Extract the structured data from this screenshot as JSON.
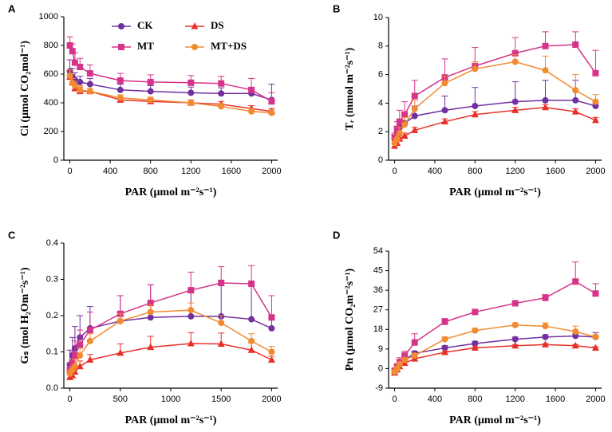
{
  "chart_data": [
    {
      "type": "line",
      "label": "A",
      "xlabel": "PAR (μmol m⁻²s⁻¹)",
      "ylabel": "Ci (μmol CO₂mol⁻¹)",
      "legend": true,
      "x": [
        0,
        25,
        50,
        100,
        200,
        500,
        800,
        1200,
        1500,
        1800,
        2000
      ],
      "xlim": [
        -60,
        2060
      ],
      "xticks": [
        0,
        400,
        800,
        1200,
        1600,
        2000
      ],
      "ylim": [
        0,
        1000
      ],
      "yticks": [
        0,
        200,
        400,
        600,
        800,
        1000
      ],
      "series": [
        {
          "name": "CK",
          "color": "#7030a0",
          "marker": "circle",
          "values": [
            620,
            580,
            560,
            545,
            530,
            490,
            480,
            470,
            465,
            465,
            420
          ],
          "errors": [
            80,
            60,
            50,
            40,
            40,
            40,
            40,
            40,
            40,
            40,
            110
          ]
        },
        {
          "name": "MT",
          "color": "#d6338a",
          "marker": "square",
          "values": [
            800,
            760,
            680,
            650,
            605,
            555,
            545,
            540,
            535,
            490,
            410
          ],
          "errors": [
            60,
            50,
            70,
            60,
            60,
            50,
            50,
            50,
            50,
            80,
            60
          ]
        },
        {
          "name": "DS",
          "color": "#e8302a",
          "marker": "triangle",
          "values": [
            580,
            540,
            500,
            480,
            480,
            420,
            410,
            400,
            390,
            360,
            340
          ],
          "errors": [
            40,
            30,
            30,
            30,
            20,
            20,
            20,
            20,
            20,
            20,
            20
          ]
        },
        {
          "name": "MT+DS",
          "color": "#f28a30",
          "marker": "circle",
          "values": [
            590,
            540,
            520,
            490,
            480,
            435,
            420,
            400,
            375,
            340,
            330
          ],
          "errors": [
            40,
            30,
            30,
            30,
            20,
            20,
            20,
            20,
            20,
            20,
            20
          ]
        }
      ]
    },
    {
      "type": "line",
      "label": "B",
      "xlabel": "PAR (μmol m⁻²s⁻¹)",
      "ylabel": "Tᵣ (mmol m⁻²s⁻¹)",
      "legend": false,
      "x": [
        0,
        25,
        50,
        100,
        200,
        500,
        800,
        1200,
        1500,
        1800,
        2000
      ],
      "xlim": [
        -60,
        2060
      ],
      "xticks": [
        0,
        400,
        800,
        1200,
        1600,
        2000
      ],
      "ylim": [
        0,
        10
      ],
      "yticks": [
        0,
        2,
        4,
        6,
        8,
        10
      ],
      "series": [
        {
          "color": "#7030a0",
          "marker": "circle",
          "values": [
            1.5,
            1.9,
            2.3,
            2.6,
            3.1,
            3.5,
            3.8,
            4.1,
            4.2,
            4.2,
            3.8
          ],
          "errors": [
            0.3,
            0.3,
            0.4,
            0.5,
            0.7,
            1.0,
            1.3,
            1.4,
            1.4,
            1.4,
            0.2
          ]
        },
        {
          "color": "#d6338a",
          "marker": "square",
          "values": [
            1.6,
            2.2,
            2.7,
            3.2,
            4.5,
            5.8,
            6.6,
            7.5,
            8.0,
            8.1,
            6.1
          ],
          "errors": [
            0.3,
            0.5,
            0.8,
            0.9,
            1.1,
            1.3,
            1.3,
            1.1,
            1.0,
            0.9,
            1.6
          ]
        },
        {
          "color": "#e8302a",
          "marker": "triangle",
          "values": [
            1.0,
            1.2,
            1.5,
            1.7,
            2.1,
            2.7,
            3.2,
            3.5,
            3.7,
            3.4,
            2.8
          ],
          "errors": [
            0.2,
            0.2,
            0.2,
            0.2,
            0.2,
            0.2,
            0.2,
            0.2,
            0.2,
            0.2,
            0.2
          ]
        },
        {
          "color": "#f28a30",
          "marker": "circle",
          "values": [
            1.2,
            1.5,
            1.9,
            2.5,
            3.6,
            5.4,
            6.4,
            6.9,
            6.3,
            4.9,
            4.1
          ],
          "errors": [
            0.3,
            0.3,
            0.4,
            0.5,
            0.6,
            0.5,
            0.5,
            0.5,
            1.0,
            1.1,
            0.5
          ]
        }
      ]
    },
    {
      "type": "line",
      "label": "C",
      "xlabel": "PAR (μmol m⁻²s⁻¹)",
      "ylabel": "Gₛ (mol H₂Om⁻²s⁻¹)",
      "legend": false,
      "x": [
        0,
        25,
        50,
        100,
        200,
        500,
        800,
        1200,
        1500,
        1800,
        2000
      ],
      "xlim": [
        -60,
        2060
      ],
      "xticks": [
        0,
        500,
        1000,
        1500,
        2000
      ],
      "ylim": [
        0,
        0.4
      ],
      "yticks": [
        {
          "value": 0,
          "label": "0.0"
        },
        0.1,
        0.2,
        0.3,
        0.4
      ],
      "series": [
        {
          "color": "#7030a0",
          "marker": "circle",
          "values": [
            0.065,
            0.09,
            0.11,
            0.14,
            0.165,
            0.185,
            0.195,
            0.198,
            0.198,
            0.19,
            0.165
          ],
          "errors": [
            0.04,
            0.05,
            0.06,
            0.06,
            0.06,
            0.07,
            0.09,
            0.07,
            0.1,
            0.1,
            0.03
          ]
        },
        {
          "color": "#d6338a",
          "marker": "square",
          "values": [
            0.05,
            0.07,
            0.09,
            0.12,
            0.16,
            0.205,
            0.235,
            0.27,
            0.29,
            0.288,
            0.195
          ],
          "errors": [
            0.02,
            0.03,
            0.04,
            0.04,
            0.05,
            0.05,
            0.05,
            0.05,
            0.045,
            0.05,
            0.06
          ]
        },
        {
          "color": "#e8302a",
          "marker": "triangle",
          "values": [
            0.03,
            0.035,
            0.045,
            0.06,
            0.078,
            0.097,
            0.113,
            0.123,
            0.122,
            0.105,
            0.078
          ],
          "errors": [
            0.01,
            0.01,
            0.01,
            0.015,
            0.015,
            0.025,
            0.03,
            0.03,
            0.03,
            0.02,
            0.01
          ]
        },
        {
          "color": "#f28a30",
          "marker": "circle",
          "values": [
            0.04,
            0.05,
            0.06,
            0.09,
            0.13,
            0.185,
            0.21,
            0.215,
            0.18,
            0.13,
            0.1
          ],
          "errors": [
            0.01,
            0.01,
            0.02,
            0.02,
            0.02,
            0.02,
            0.02,
            0.02,
            0.02,
            0.02,
            0.015
          ]
        }
      ]
    },
    {
      "type": "line",
      "label": "D",
      "xlabel": "PAR (μmol m⁻²s⁻¹)",
      "ylabel": "Pn (μmol CO₂m⁻²s⁻¹)",
      "legend": false,
      "x": [
        0,
        25,
        50,
        100,
        200,
        500,
        800,
        1200,
        1500,
        1800,
        2000
      ],
      "xlim": [
        -60,
        2060
      ],
      "xticks": [
        0,
        400,
        800,
        1200,
        1600,
        2000
      ],
      "ylim": [
        -9,
        54
      ],
      "yticks": [
        -9,
        0,
        9,
        18,
        27,
        36,
        45,
        54
      ],
      "series": [
        {
          "color": "#7030a0",
          "marker": "circle",
          "values": [
            -1,
            0,
            2,
            4,
            7,
            9.5,
            11.5,
            13.5,
            14.5,
            15,
            14.5
          ],
          "errors": [
            1,
            1,
            1,
            1,
            1,
            1,
            1,
            1,
            1,
            1,
            2
          ]
        },
        {
          "color": "#d6338a",
          "marker": "square",
          "values": [
            -1,
            1,
            3,
            6,
            12,
            21.5,
            26,
            30,
            32.5,
            40,
            34.5
          ],
          "errors": [
            1,
            1,
            2,
            2,
            4,
            1.5,
            1,
            1,
            1.5,
            9,
            4.5
          ]
        },
        {
          "color": "#e8302a",
          "marker": "triangle",
          "values": [
            -2,
            -0.5,
            1,
            2.5,
            4.5,
            7.5,
            9.5,
            10.5,
            11,
            10.5,
            9.5
          ],
          "errors": [
            0.5,
            0.5,
            0.5,
            0.5,
            0.5,
            0.5,
            0.5,
            0.5,
            0.5,
            0.5,
            0.5
          ]
        },
        {
          "color": "#f28a30",
          "marker": "circle",
          "values": [
            -1.5,
            0,
            2,
            4,
            6,
            13.5,
            17.5,
            20,
            19.5,
            17,
            14.5
          ],
          "errors": [
            1,
            1,
            1,
            1,
            1,
            1,
            1,
            1,
            1.5,
            2.5,
            1
          ]
        }
      ]
    }
  ]
}
